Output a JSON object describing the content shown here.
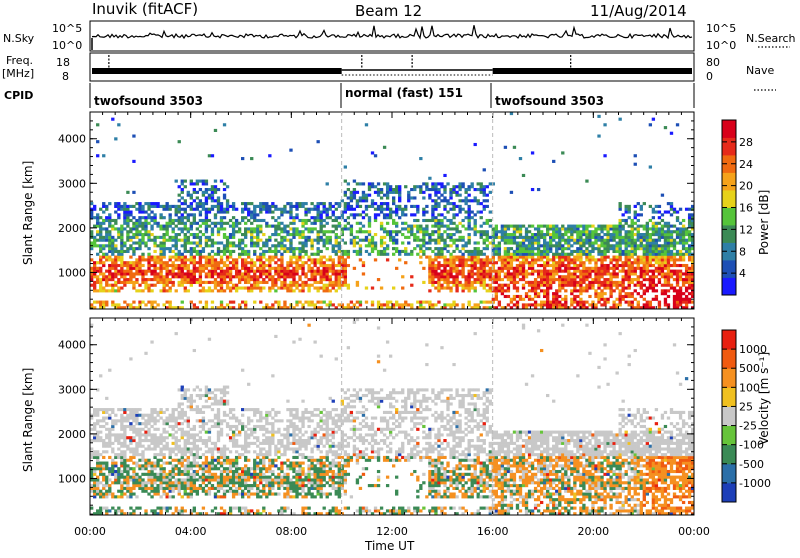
{
  "header": {
    "station": "Inuvik (fitACF)",
    "beam": "Beam 12",
    "date": "11/Aug/2014"
  },
  "panels": {
    "nsky": {
      "label": "N.Sky",
      "ticks": [
        "10^5",
        "10^0"
      ],
      "right_ticks": [
        "10^5",
        "10^0"
      ],
      "right_label": "N.Search"
    },
    "freq": {
      "label_line1": "Freq.",
      "label_line2": "[MHz]",
      "ticks": [
        "18",
        "8"
      ],
      "right_ticks": [
        "80",
        "0"
      ],
      "right_label": "Nave"
    },
    "cpid": {
      "label": "CPID",
      "segments": [
        "twofsound 3503",
        "normal (fast) 151",
        "twofsound 3503"
      ]
    }
  },
  "chart_data": [
    {
      "type": "heatmap",
      "title": "",
      "xlabel": "",
      "ylabel": "Slant Range [km]",
      "x_ticks": [
        "00:00",
        "04:00",
        "08:00",
        "12:00",
        "16:00",
        "20:00",
        "00:00"
      ],
      "y_ticks": [
        1000,
        2000,
        3000,
        4000
      ],
      "xlim_hours": [
        0,
        24
      ],
      "ylim": [
        180,
        4600
      ],
      "colorbar": {
        "label": "Power [dB]",
        "ticks": [
          "28",
          "24",
          "20",
          "16",
          "12",
          "8",
          "4"
        ],
        "colors": [
          "#1a1aff",
          "#1d4fb5",
          "#2e7fa6",
          "#3b8a55",
          "#55c43a",
          "#e6d21a",
          "#f5a21a",
          "#f06a10",
          "#e62a1a",
          "#d8001a"
        ]
      }
    },
    {
      "type": "heatmap",
      "title": "",
      "xlabel": "Time UT",
      "ylabel": "Slant Range [km]",
      "x_ticks": [
        "00:00",
        "04:00",
        "08:00",
        "12:00",
        "16:00",
        "20:00",
        "00:00"
      ],
      "y_ticks": [
        1000,
        2000,
        3000,
        4000
      ],
      "xlim_hours": [
        0,
        24
      ],
      "ylim": [
        180,
        4600
      ],
      "colorbar": {
        "label": "Velocity [m s⁻¹]",
        "ticks": [
          "1000",
          "500",
          "100",
          "25",
          "-25",
          "-100",
          "-500",
          "-1000"
        ],
        "colors": [
          "#1d3fb8",
          "#2b6fa8",
          "#3a8a55",
          "#66c43a",
          "#c8c8c8",
          "#f0c020",
          "#f59020",
          "#f05a10",
          "#e82010"
        ]
      }
    }
  ]
}
